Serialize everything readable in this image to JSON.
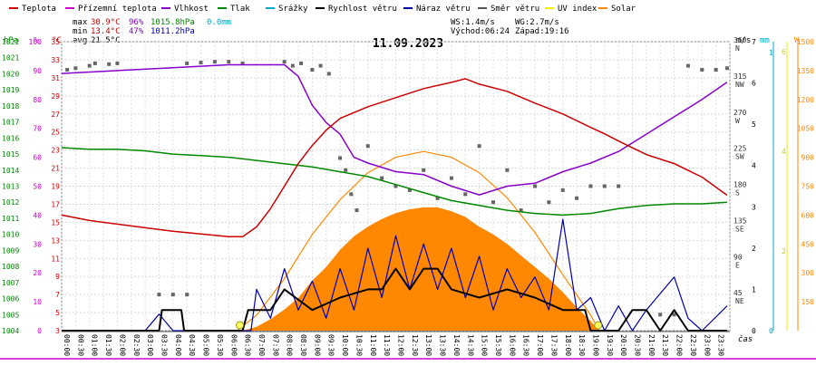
{
  "chart_data": {
    "type": "line",
    "title": "11.09.2023",
    "legend": {
      "placement": "top",
      "items": [
        {
          "label": "Teplota",
          "color": "#cc0000"
        },
        {
          "label": "Přízemní teplota",
          "color": "#cc00cc"
        },
        {
          "label": "Vlhkost",
          "color": "#8800cc"
        },
        {
          "label": "Tlak",
          "color": "#008800"
        },
        {
          "label": "Srážky",
          "color": "#00aacc"
        },
        {
          "label": "Rychlost větru",
          "color": "#000000"
        },
        {
          "label": "Náraz větru",
          "color": "#0000aa"
        },
        {
          "label": "Směr větru",
          "color": "#555555"
        },
        {
          "label": "UV index",
          "color": "#eeee00"
        },
        {
          "label": "Solar",
          "color": "#ff8800"
        }
      ]
    },
    "stats": {
      "max_label": "max",
      "max_temp": "30.9°C",
      "max_hum": "96%",
      "max_press": "1015.8hPa",
      "max_rain": "0.0mm",
      "min_label": "min",
      "min_temp": "13.4°C",
      "min_hum": "47%",
      "min_press": "1011.2hPa",
      "avg_label": "avg",
      "avg_temp": "21.5°C",
      "ws": "WS:1.4m/s",
      "wg": "WG:2.7m/s",
      "sunrise": "Východ:06:24",
      "sunset": "Západ:19:16"
    },
    "axis_titles": {
      "hpa": "hPa",
      "pct": "%",
      "degc": "°C",
      "ms": "m/s",
      "mm": "mm",
      "w": "W",
      "time": "čas"
    },
    "axes": {
      "hpa_ticks": [
        1022,
        1021,
        1020,
        1019,
        1018,
        1017,
        1016,
        1015,
        1014,
        1013,
        1012,
        1011,
        1010,
        1009,
        1008,
        1007,
        1006,
        1005,
        1004
      ],
      "pct_ticks": [
        100,
        90,
        80,
        70,
        60,
        50,
        40,
        30,
        20,
        10,
        0
      ],
      "temp_ticks": [
        35,
        33,
        31,
        29,
        27,
        25,
        23,
        21,
        19,
        17,
        15,
        13,
        11,
        9,
        7,
        5,
        3
      ],
      "dir_ticks": [
        {
          "v": "360",
          "d": "N"
        },
        {
          "v": "315",
          "d": "NW"
        },
        {
          "v": "270",
          "d": "W"
        },
        {
          "v": "225",
          "d": "SW"
        },
        {
          "v": "180",
          "d": "S"
        },
        {
          "v": "135",
          "d": "SE"
        },
        {
          "v": "90",
          "d": "E"
        },
        {
          "v": "45",
          "d": "NE"
        }
      ],
      "ms_ticks": [
        7,
        6,
        5,
        4,
        3,
        2,
        1,
        0
      ],
      "mm_ticks": [
        1,
        0
      ],
      "uv_ticks": [
        6,
        4,
        2
      ],
      "w_ticks": [
        1500,
        1350,
        1200,
        1050,
        900,
        750,
        600,
        450,
        300,
        150
      ],
      "time_ticks": [
        "00:00",
        "00:30",
        "01:00",
        "01:30",
        "02:00",
        "02:30",
        "03:00",
        "03:30",
        "04:00",
        "04:30",
        "05:00",
        "05:30",
        "06:00",
        "06:30",
        "07:00",
        "07:30",
        "08:00",
        "08:30",
        "09:00",
        "09:30",
        "10:00",
        "10:30",
        "11:00",
        "11:30",
        "12:00",
        "12:30",
        "13:00",
        "13:30",
        "14:00",
        "14:30",
        "15:00",
        "15:30",
        "16:00",
        "16:30",
        "17:00",
        "17:30",
        "18:00",
        "18:30",
        "19:00",
        "19:30",
        "20:00",
        "20:30",
        "21:00",
        "21:30",
        "22:00",
        "22:30",
        "23:00",
        "23:30"
      ]
    },
    "series": [
      {
        "name": "Teplota",
        "color": "#cc0000",
        "unit": "°C",
        "points": [
          [
            0,
            15.8
          ],
          [
            1,
            15.2
          ],
          [
            2,
            14.8
          ],
          [
            3,
            14.4
          ],
          [
            4,
            14.0
          ],
          [
            5,
            13.7
          ],
          [
            6,
            13.4
          ],
          [
            6.5,
            13.4
          ],
          [
            7,
            14.5
          ],
          [
            7.5,
            16.5
          ],
          [
            8,
            19.0
          ],
          [
            8.5,
            21.5
          ],
          [
            9,
            23.5
          ],
          [
            9.5,
            25.2
          ],
          [
            10,
            26.5
          ],
          [
            11,
            27.8
          ],
          [
            12,
            28.8
          ],
          [
            13,
            29.8
          ],
          [
            14,
            30.5
          ],
          [
            14.5,
            30.9
          ],
          [
            15,
            30.3
          ],
          [
            16,
            29.5
          ],
          [
            17,
            28.2
          ],
          [
            18,
            27.0
          ],
          [
            19,
            25.5
          ],
          [
            19.5,
            24.8
          ],
          [
            20,
            24.0
          ],
          [
            21,
            22.5
          ],
          [
            22,
            21.5
          ],
          [
            23,
            20.0
          ],
          [
            23.9,
            18.0
          ]
        ]
      },
      {
        "name": "Vlhkost",
        "color": "#8800cc",
        "unit": "%",
        "points": [
          [
            0,
            89
          ],
          [
            2,
            90
          ],
          [
            4,
            91
          ],
          [
            6,
            92
          ],
          [
            7,
            92
          ],
          [
            8,
            92
          ],
          [
            8.5,
            88
          ],
          [
            9,
            78
          ],
          [
            9.5,
            72
          ],
          [
            10,
            68
          ],
          [
            10.5,
            60
          ],
          [
            11,
            58
          ],
          [
            12,
            55
          ],
          [
            13,
            54
          ],
          [
            14,
            50
          ],
          [
            15,
            47
          ],
          [
            16,
            50
          ],
          [
            17,
            51
          ],
          [
            18,
            55
          ],
          [
            19,
            58
          ],
          [
            20,
            62
          ],
          [
            21,
            68
          ],
          [
            22,
            74
          ],
          [
            23,
            80
          ],
          [
            23.9,
            86
          ]
        ]
      },
      {
        "name": "Tlak",
        "color": "#008800",
        "unit": "hPa",
        "points": [
          [
            0,
            1015.4
          ],
          [
            1,
            1015.3
          ],
          [
            2,
            1015.3
          ],
          [
            3,
            1015.2
          ],
          [
            4,
            1015.0
          ],
          [
            5,
            1014.9
          ],
          [
            6,
            1014.8
          ],
          [
            7,
            1014.6
          ],
          [
            8,
            1014.4
          ],
          [
            9,
            1014.2
          ],
          [
            10,
            1013.9
          ],
          [
            11,
            1013.6
          ],
          [
            12,
            1013.1
          ],
          [
            13,
            1012.6
          ],
          [
            14,
            1012.1
          ],
          [
            15,
            1011.8
          ],
          [
            16,
            1011.5
          ],
          [
            17,
            1011.3
          ],
          [
            18,
            1011.2
          ],
          [
            19,
            1011.3
          ],
          [
            20,
            1011.6
          ],
          [
            21,
            1011.8
          ],
          [
            22,
            1011.9
          ],
          [
            23,
            1011.9
          ],
          [
            23.9,
            1012.0
          ]
        ]
      },
      {
        "name": "Rychlost větru",
        "color": "#000000",
        "unit": "m/s",
        "points": [
          [
            0,
            0
          ],
          [
            3.5,
            0
          ],
          [
            3.6,
            0.5
          ],
          [
            4.3,
            0.5
          ],
          [
            4.4,
            0
          ],
          [
            6.5,
            0
          ],
          [
            6.7,
            0.5
          ],
          [
            7.5,
            0.5
          ],
          [
            8,
            1.0
          ],
          [
            9,
            0.5
          ],
          [
            10,
            0.8
          ],
          [
            11,
            1.0
          ],
          [
            11.5,
            1.0
          ],
          [
            12,
            1.5
          ],
          [
            12.5,
            1.0
          ],
          [
            13,
            1.5
          ],
          [
            13.5,
            1.5
          ],
          [
            14,
            1.0
          ],
          [
            15,
            0.8
          ],
          [
            16,
            1.0
          ],
          [
            17,
            0.8
          ],
          [
            18,
            0.5
          ],
          [
            18.8,
            0.5
          ],
          [
            19,
            0
          ],
          [
            20,
            0
          ],
          [
            20.5,
            0.5
          ],
          [
            21,
            0.5
          ],
          [
            21.5,
            0
          ],
          [
            22,
            0.5
          ],
          [
            22.5,
            0
          ],
          [
            23.9,
            0
          ]
        ]
      },
      {
        "name": "Náraz větru",
        "color": "#0000aa",
        "unit": "m/s",
        "points": [
          [
            0,
            0
          ],
          [
            3,
            0
          ],
          [
            3.5,
            0.4
          ],
          [
            4,
            0
          ],
          [
            6.8,
            0
          ],
          [
            7,
            1.0
          ],
          [
            7.5,
            0.3
          ],
          [
            8,
            1.5
          ],
          [
            8.5,
            0.5
          ],
          [
            9,
            1.2
          ],
          [
            9.5,
            0.3
          ],
          [
            10,
            1.5
          ],
          [
            10.5,
            0.5
          ],
          [
            11,
            2.0
          ],
          [
            11.5,
            0.8
          ],
          [
            12,
            2.3
          ],
          [
            12.5,
            1.0
          ],
          [
            13,
            2.1
          ],
          [
            13.5,
            1.0
          ],
          [
            14,
            2.0
          ],
          [
            14.5,
            0.8
          ],
          [
            15,
            1.8
          ],
          [
            15.5,
            0.5
          ],
          [
            16,
            1.5
          ],
          [
            16.5,
            0.8
          ],
          [
            17,
            1.3
          ],
          [
            17.5,
            0.5
          ],
          [
            18,
            2.7
          ],
          [
            18.5,
            0.5
          ],
          [
            19,
            0.8
          ],
          [
            19.5,
            0
          ],
          [
            20,
            0.6
          ],
          [
            20.5,
            0
          ],
          [
            21,
            0.5
          ],
          [
            22,
            1.3
          ],
          [
            22.5,
            0.3
          ],
          [
            23,
            0
          ],
          [
            23.9,
            0.6
          ]
        ]
      },
      {
        "name": "Směr větru",
        "color": "#555555",
        "unit": "°",
        "points": [
          [
            0.2,
            325
          ],
          [
            0.5,
            327
          ],
          [
            1.0,
            330
          ],
          [
            1.2,
            333
          ],
          [
            1.7,
            332
          ],
          [
            2.0,
            333
          ],
          [
            4.5,
            333
          ],
          [
            5.0,
            334
          ],
          [
            5.5,
            335
          ],
          [
            6.0,
            335
          ],
          [
            6.5,
            333
          ],
          [
            3.5,
            45
          ],
          [
            4.0,
            45
          ],
          [
            4.5,
            45
          ],
          [
            8.0,
            335
          ],
          [
            8.3,
            330
          ],
          [
            8.6,
            333
          ],
          [
            9.0,
            325
          ],
          [
            9.3,
            330
          ],
          [
            9.6,
            320
          ],
          [
            10.0,
            215
          ],
          [
            10.2,
            200
          ],
          [
            10.4,
            170
          ],
          [
            10.6,
            150
          ],
          [
            11.0,
            230
          ],
          [
            11.5,
            190
          ],
          [
            12.0,
            180
          ],
          [
            12.5,
            175
          ],
          [
            13.0,
            200
          ],
          [
            13.5,
            165
          ],
          [
            14.0,
            190
          ],
          [
            14.5,
            170
          ],
          [
            15.0,
            230
          ],
          [
            15.5,
            160
          ],
          [
            16.0,
            200
          ],
          [
            16.5,
            150
          ],
          [
            17.0,
            180
          ],
          [
            17.5,
            160
          ],
          [
            18.0,
            175
          ],
          [
            18.5,
            165
          ],
          [
            19.0,
            180
          ],
          [
            19.5,
            180
          ],
          [
            20.0,
            180
          ],
          [
            21.5,
            20
          ],
          [
            22.0,
            20
          ],
          [
            22.5,
            330
          ],
          [
            23.0,
            325
          ],
          [
            23.5,
            325
          ],
          [
            23.9,
            327
          ]
        ]
      },
      {
        "name": "Solar",
        "color": "#ff8800",
        "unit": "W",
        "points": [
          [
            6.5,
            0
          ],
          [
            7,
            20
          ],
          [
            7.5,
            60
          ],
          [
            8,
            110
          ],
          [
            8.5,
            170
          ],
          [
            9,
            260
          ],
          [
            9.5,
            330
          ],
          [
            10,
            420
          ],
          [
            10.5,
            490
          ],
          [
            11,
            540
          ],
          [
            11.5,
            580
          ],
          [
            12,
            610
          ],
          [
            12.5,
            630
          ],
          [
            13,
            640
          ],
          [
            13.5,
            640
          ],
          [
            14,
            620
          ],
          [
            14.5,
            590
          ],
          [
            15,
            540
          ],
          [
            15.5,
            500
          ],
          [
            16,
            450
          ],
          [
            16.5,
            390
          ],
          [
            17,
            330
          ],
          [
            17.5,
            270
          ],
          [
            18,
            200
          ],
          [
            18.5,
            120
          ],
          [
            19,
            50
          ],
          [
            19.3,
            0
          ]
        ]
      },
      {
        "name": "Solar max",
        "color": "#ff8800",
        "unit": "W",
        "points": [
          [
            6.3,
            0
          ],
          [
            7,
            80
          ],
          [
            8,
            270
          ],
          [
            9,
            500
          ],
          [
            10,
            680
          ],
          [
            11,
            820
          ],
          [
            12,
            900
          ],
          [
            13,
            930
          ],
          [
            14,
            900
          ],
          [
            15,
            820
          ],
          [
            16,
            690
          ],
          [
            17,
            510
          ],
          [
            18,
            290
          ],
          [
            19,
            80
          ],
          [
            19.3,
            0
          ]
        ]
      }
    ],
    "markers": [
      {
        "name": "sunrise",
        "x": 6.4
      },
      {
        "name": "sunset",
        "x": 19.27
      }
    ],
    "xlim": [
      0,
      24
    ],
    "ylim_temp": [
      3,
      35
    ],
    "ylim_pct": [
      0,
      100
    ],
    "ylim_hpa": [
      1004,
      1022
    ],
    "ylim_dir": [
      0,
      360
    ],
    "ylim_ms": [
      0,
      7
    ],
    "ylim_w": [
      0,
      1500
    ],
    "grid": true
  }
}
